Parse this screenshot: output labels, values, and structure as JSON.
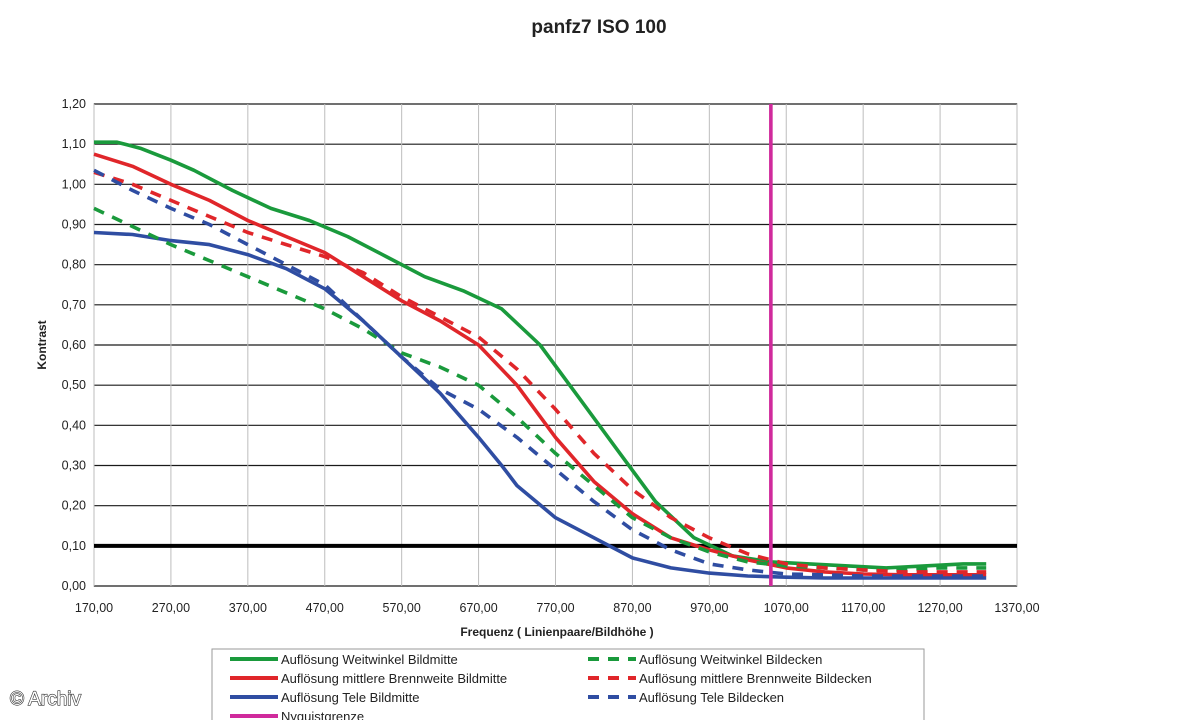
{
  "chart_data": {
    "type": "line",
    "title": "panfz7    ISO 100",
    "xlabel": "Frequenz ( Linienpaare/Bildhöhe )",
    "ylabel": "Kontrast",
    "xlim": [
      170,
      1370
    ],
    "ylim": [
      0,
      1.2
    ],
    "x_ticks": [
      "170,00",
      "270,00",
      "370,00",
      "470,00",
      "570,00",
      "670,00",
      "770,00",
      "870,00",
      "970,00",
      "1070,00",
      "1170,00",
      "1270,00",
      "1370,00"
    ],
    "y_ticks": [
      "0,00",
      "0,10",
      "0,20",
      "0,30",
      "0,40",
      "0,50",
      "0,60",
      "0,70",
      "0,80",
      "0,90",
      "1,00",
      "1,10",
      "1,20"
    ],
    "grid": "horizontal",
    "legend_position": "bottom",
    "series": [
      {
        "name": "Auflösung Weitwinkel Bildmitte",
        "color": "#1a9a3c",
        "style": "solid",
        "x": [
          170,
          200,
          230,
          270,
          300,
          350,
          400,
          450,
          500,
          550,
          600,
          650,
          700,
          750,
          800,
          850,
          900,
          950,
          1000,
          1050,
          1100,
          1150,
          1200,
          1250,
          1300,
          1330
        ],
        "y": [
          1.105,
          1.105,
          1.09,
          1.06,
          1.035,
          0.985,
          0.94,
          0.91,
          0.87,
          0.82,
          0.77,
          0.735,
          0.69,
          0.6,
          0.47,
          0.34,
          0.21,
          0.12,
          0.075,
          0.06,
          0.055,
          0.05,
          0.045,
          0.05,
          0.055,
          0.055
        ]
      },
      {
        "name": "Auflösung Weitwinkel Bildecken",
        "color": "#1a9a3c",
        "style": "dashed",
        "x": [
          170,
          220,
          270,
          320,
          370,
          420,
          470,
          520,
          570,
          620,
          670,
          720,
          770,
          820,
          870,
          920,
          970,
          1020,
          1070,
          1120,
          1170,
          1220,
          1270,
          1330
        ],
        "y": [
          0.94,
          0.895,
          0.85,
          0.81,
          0.77,
          0.73,
          0.69,
          0.64,
          0.58,
          0.545,
          0.5,
          0.42,
          0.33,
          0.25,
          0.17,
          0.12,
          0.085,
          0.06,
          0.05,
          0.045,
          0.04,
          0.04,
          0.045,
          0.045
        ]
      },
      {
        "name": "Auflösung mittlere Brennweite Bildmitte",
        "color": "#e0262a",
        "style": "solid",
        "x": [
          170,
          220,
          270,
          320,
          370,
          420,
          470,
          520,
          570,
          620,
          670,
          720,
          770,
          820,
          870,
          920,
          970,
          1020,
          1070,
          1120,
          1170,
          1220,
          1270,
          1330
        ],
        "y": [
          1.075,
          1.045,
          1.0,
          0.96,
          0.91,
          0.87,
          0.83,
          0.77,
          0.71,
          0.66,
          0.6,
          0.5,
          0.37,
          0.26,
          0.18,
          0.12,
          0.09,
          0.065,
          0.045,
          0.035,
          0.03,
          0.028,
          0.028,
          0.028
        ]
      },
      {
        "name": "Auflösung mittlere Brennweite Bildecken",
        "color": "#e0262a",
        "style": "dashed",
        "x": [
          170,
          220,
          270,
          320,
          370,
          420,
          470,
          520,
          570,
          620,
          670,
          720,
          770,
          820,
          870,
          920,
          970,
          1020,
          1070,
          1120,
          1170,
          1220,
          1270,
          1330
        ],
        "y": [
          1.03,
          1.0,
          0.96,
          0.92,
          0.88,
          0.85,
          0.82,
          0.78,
          0.72,
          0.67,
          0.62,
          0.54,
          0.44,
          0.33,
          0.24,
          0.17,
          0.12,
          0.08,
          0.055,
          0.045,
          0.04,
          0.035,
          0.035,
          0.035
        ]
      },
      {
        "name": "Auflösung Tele Bildmitte",
        "color": "#2f4da2",
        "style": "solid",
        "x": [
          170,
          220,
          270,
          320,
          370,
          420,
          470,
          520,
          570,
          620,
          670,
          700,
          720,
          770,
          820,
          870,
          920,
          970,
          1020,
          1070,
          1120,
          1170,
          1220,
          1270,
          1330
        ],
        "y": [
          0.88,
          0.875,
          0.86,
          0.85,
          0.825,
          0.79,
          0.74,
          0.66,
          0.57,
          0.48,
          0.37,
          0.3,
          0.25,
          0.17,
          0.12,
          0.07,
          0.045,
          0.032,
          0.025,
          0.022,
          0.02,
          0.02,
          0.02,
          0.02,
          0.02
        ]
      },
      {
        "name": "Auflösung Tele Bildecken",
        "color": "#2f4da2",
        "style": "dashed",
        "x": [
          170,
          220,
          270,
          320,
          370,
          420,
          470,
          520,
          570,
          620,
          670,
          720,
          770,
          820,
          870,
          920,
          970,
          1020,
          1070,
          1120,
          1170,
          1220,
          1270,
          1330
        ],
        "y": [
          1.035,
          0.985,
          0.94,
          0.9,
          0.85,
          0.8,
          0.75,
          0.66,
          0.57,
          0.49,
          0.44,
          0.37,
          0.29,
          0.21,
          0.14,
          0.09,
          0.055,
          0.04,
          0.03,
          0.028,
          0.025,
          0.025,
          0.025,
          0.025
        ]
      },
      {
        "name": "Nyquistgrenze",
        "color": "#d02a9c",
        "style": "vertical",
        "x_value": 1050
      }
    ],
    "threshold_line": {
      "y": 0.1,
      "color": "#000000"
    }
  },
  "watermark": "© Archiv"
}
